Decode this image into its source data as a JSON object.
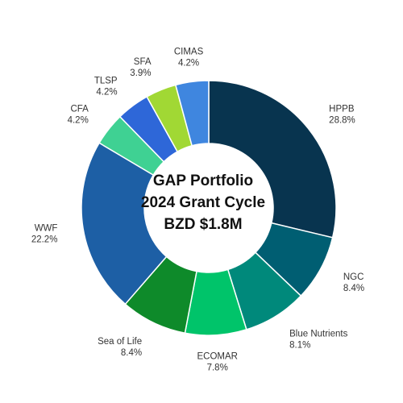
{
  "chart_data": {
    "type": "pie",
    "variant": "donut",
    "center_text": [
      "GAP Portfolio",
      "2024 Grant Cycle",
      "BZD $1.8M"
    ],
    "legend": "none",
    "slices": [
      {
        "label": "HPPB",
        "value": 28.8,
        "value_label": "28.8%",
        "color": "#08344f"
      },
      {
        "label": "NGC",
        "value": 8.4,
        "value_label": "8.4%",
        "color": "#005e72"
      },
      {
        "label": "Blue Nutrients",
        "value": 8.1,
        "value_label": "8.1%",
        "color": "#00897b"
      },
      {
        "label": "ECOMAR",
        "value": 7.8,
        "value_label": "7.8%",
        "color": "#00c46a"
      },
      {
        "label": "Sea of Life",
        "value": 8.4,
        "value_label": "8.4%",
        "color": "#0e8a2a"
      },
      {
        "label": "WWF",
        "value": 22.2,
        "value_label": "22.2%",
        "color": "#1d5fa5"
      },
      {
        "label": "CFA",
        "value": 4.2,
        "value_label": "4.2%",
        "color": "#3fd193"
      },
      {
        "label": "TLSP",
        "value": 4.2,
        "value_label": "4.2%",
        "color": "#2e67d8"
      },
      {
        "label": "SFA",
        "value": 3.9,
        "value_label": "3.9%",
        "color": "#a1d834"
      },
      {
        "label": "CIMAS",
        "value": 4.2,
        "value_label": "4.2%",
        "color": "#3f86df"
      }
    ]
  }
}
